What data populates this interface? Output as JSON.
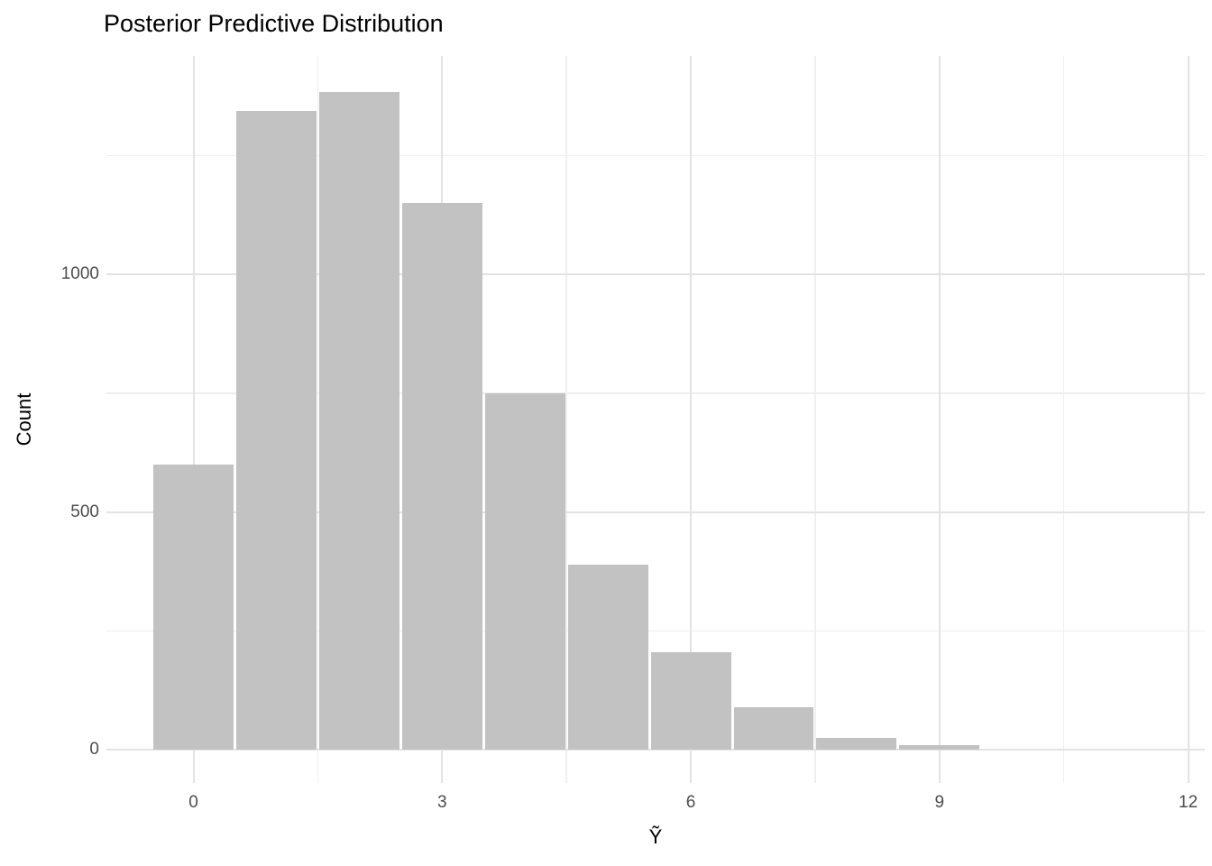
{
  "chart_data": {
    "type": "bar",
    "subtype": "histogram",
    "title": "Posterior Predictive Distribution",
    "xlabel": "Ỹ",
    "ylabel": "Count",
    "categories": [
      0,
      1,
      2,
      3,
      4,
      5,
      6,
      7,
      8,
      9
    ],
    "values": [
      600,
      1345,
      1385,
      1150,
      750,
      390,
      205,
      90,
      25,
      10
    ],
    "bin_width": 1,
    "x_breaks": [
      0,
      3,
      6,
      9,
      12
    ],
    "x_break_labels": [
      "0",
      "3",
      "6",
      "9",
      "12"
    ],
    "x_minor_breaks": [
      1.5,
      4.5,
      7.5,
      10.5
    ],
    "y_breaks": [
      0,
      500,
      1000
    ],
    "y_break_labels": [
      "0",
      "500",
      "1000"
    ],
    "y_minor_breaks": [
      250,
      750,
      1250
    ],
    "xlim": [
      -1.05,
      12.2
    ],
    "ylim": [
      -70,
      1460
    ],
    "grid": true,
    "legend_position": "none",
    "colors": {
      "bar_fill": "#c2c2c2",
      "grid_major": "#e3e3e3",
      "grid_minor": "#efefef",
      "tick_label": "#4d4d4d",
      "title": "#000000",
      "background": "#ffffff"
    }
  }
}
